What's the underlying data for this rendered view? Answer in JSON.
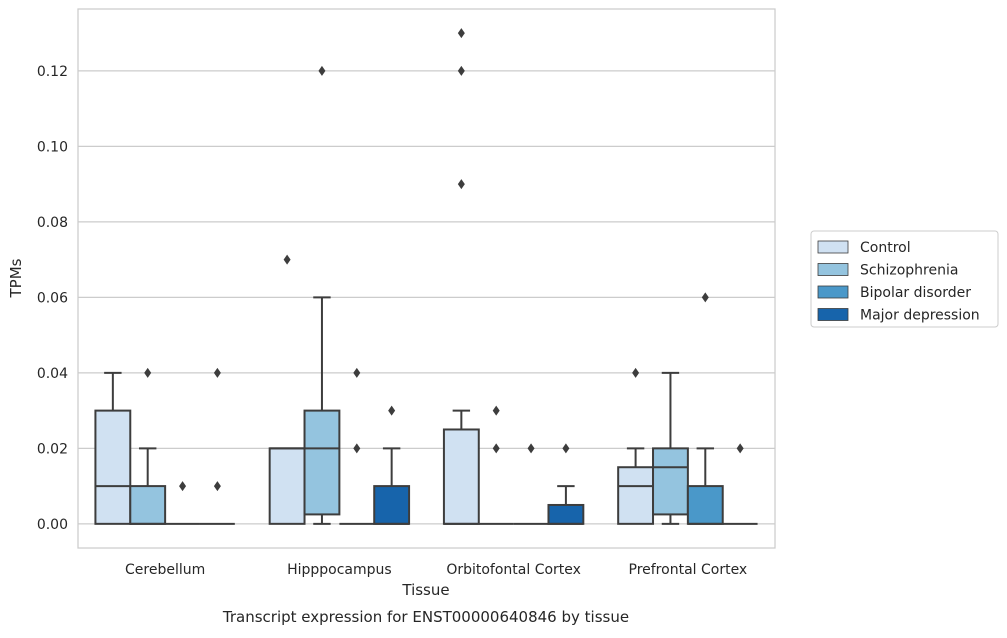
{
  "chart_data": {
    "type": "box",
    "title": "",
    "caption": "Transcript expression for ENST00000640846 by tissue",
    "xlabel": "Tissue",
    "ylabel": "TPMs",
    "ylim": [
      -0.0064,
      0.1364
    ],
    "yticks": [
      "0.00",
      "0.02",
      "0.04",
      "0.06",
      "0.08",
      "0.10",
      "0.12"
    ],
    "categories": [
      "Cerebellum",
      "Hipppocampus",
      "Orbitofontal Cortex",
      "Prefrontal Cortex"
    ],
    "grid": "horizontal",
    "legend_position": "right",
    "series": [
      {
        "name": "Control",
        "color": "#d0e1f2",
        "boxes": [
          {
            "q1": 0.0,
            "median": 0.01,
            "q3": 0.03,
            "whisker_low": 0.0,
            "whisker_high": 0.04,
            "outliers": []
          },
          {
            "q1": 0.0,
            "median": 0.02,
            "q3": 0.02,
            "whisker_low": 0.0,
            "whisker_high": 0.02,
            "outliers": [
              0.07
            ]
          },
          {
            "q1": 0.0,
            "median": 0.0,
            "q3": 0.025,
            "whisker_low": 0.0,
            "whisker_high": 0.03,
            "outliers": [
              0.09,
              0.12,
              0.13
            ]
          },
          {
            "q1": 0.0,
            "median": 0.01,
            "q3": 0.015,
            "whisker_low": 0.0,
            "whisker_high": 0.02,
            "outliers": [
              0.04
            ]
          }
        ]
      },
      {
        "name": "Schizophrenia",
        "color": "#94c4df",
        "boxes": [
          {
            "q1": 0.0,
            "median": 0.0,
            "q3": 0.01,
            "whisker_low": 0.0,
            "whisker_high": 0.02,
            "outliers": [
              0.04
            ]
          },
          {
            "q1": 0.0025,
            "median": 0.02,
            "q3": 0.03,
            "whisker_low": 0.0,
            "whisker_high": 0.06,
            "outliers": [
              0.12
            ]
          },
          {
            "q1": 0.0,
            "median": 0.0,
            "q3": 0.0,
            "whisker_low": 0.0,
            "whisker_high": 0.0,
            "outliers": [
              0.02,
              0.03
            ]
          },
          {
            "q1": 0.0025,
            "median": 0.015,
            "q3": 0.02,
            "whisker_low": 0.0,
            "whisker_high": 0.04,
            "outliers": []
          }
        ]
      },
      {
        "name": "Bipolar disorder",
        "color": "#4a98c9",
        "boxes": [
          {
            "q1": 0.0,
            "median": 0.0,
            "q3": 0.0,
            "whisker_low": 0.0,
            "whisker_high": 0.0,
            "outliers": [
              0.01
            ]
          },
          {
            "q1": 0.0,
            "median": 0.0,
            "q3": 0.0,
            "whisker_low": 0.0,
            "whisker_high": 0.0,
            "outliers": [
              0.02,
              0.04
            ]
          },
          {
            "q1": 0.0,
            "median": 0.0,
            "q3": 0.0,
            "whisker_low": 0.0,
            "whisker_high": 0.0,
            "outliers": [
              0.02
            ]
          },
          {
            "q1": 0.0,
            "median": 0.0,
            "q3": 0.01,
            "whisker_low": 0.0,
            "whisker_high": 0.02,
            "outliers": [
              0.06
            ]
          }
        ]
      },
      {
        "name": "Major depression",
        "color": "#1764ab",
        "boxes": [
          {
            "q1": 0.0,
            "median": 0.0,
            "q3": 0.0,
            "whisker_low": 0.0,
            "whisker_high": 0.0,
            "outliers": [
              0.01,
              0.04
            ]
          },
          {
            "q1": 0.0,
            "median": 0.0,
            "q3": 0.01,
            "whisker_low": 0.0,
            "whisker_high": 0.02,
            "outliers": [
              0.03
            ]
          },
          {
            "q1": 0.0,
            "median": 0.0,
            "q3": 0.005,
            "whisker_low": 0.0,
            "whisker_high": 0.01,
            "outliers": [
              0.02
            ]
          },
          {
            "q1": 0.0,
            "median": 0.0,
            "q3": 0.0,
            "whisker_low": 0.0,
            "whisker_high": 0.0,
            "outliers": [
              0.02
            ]
          }
        ]
      }
    ]
  }
}
